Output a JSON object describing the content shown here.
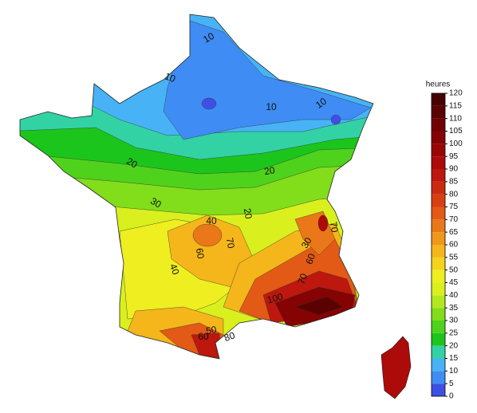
{
  "legend": {
    "title": "heures",
    "ticks": [
      0,
      5,
      10,
      15,
      20,
      25,
      30,
      35,
      40,
      45,
      50,
      55,
      60,
      65,
      70,
      75,
      80,
      85,
      90,
      95,
      100,
      105,
      110,
      115,
      120
    ],
    "colors": [
      "#3e50e4",
      "#3f8cf4",
      "#47b3f6",
      "#33d2a4",
      "#1cc51c",
      "#4fd21b",
      "#82dd1a",
      "#b2e81c",
      "#d9f01e",
      "#eeee20",
      "#f4d31c",
      "#f4b61a",
      "#f0961a",
      "#ea7818",
      "#e25a15",
      "#d84012",
      "#ca2b10",
      "#bd170e",
      "#ad0a0a",
      "#990606",
      "#850303",
      "#710202",
      "#5c0101",
      "#480000"
    ]
  },
  "contour_labels": [
    "10",
    "10",
    "10",
    "10",
    "20",
    "20",
    "20",
    "30",
    "30",
    "40",
    "40",
    "60",
    "70",
    "60",
    "70",
    "100",
    "50",
    "60",
    "80",
    "70"
  ]
}
